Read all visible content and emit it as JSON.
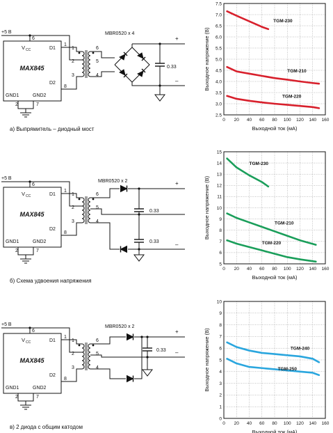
{
  "colors": {
    "red": "#d8202c",
    "green": "#1a9e5a",
    "blue": "#2aa6de",
    "grid": "#888888",
    "ink": "#111111"
  },
  "circuits": [
    {
      "caption": "а) Выпрямитель – диодный мост",
      "ic_name": "MAX845",
      "vcc": "V",
      "vcc_sub": "CC",
      "d1": "D1",
      "d2": "D2",
      "gnd1": "GND1",
      "gnd2": "GND2",
      "supply": "+5 В",
      "pins": [
        "6",
        "1",
        "8",
        "2",
        "7"
      ],
      "tr_pins": [
        "1",
        "2",
        "3",
        "6",
        "5",
        "4"
      ],
      "diode_label": "MBR0520 x 4",
      "cap_labels": [
        "0.33"
      ],
      "plus": "+",
      "minus": "–"
    },
    {
      "caption": "б) Схема удвоения напряжения",
      "ic_name": "MAX845",
      "vcc": "V",
      "vcc_sub": "CC",
      "d1": "D1",
      "d2": "D2",
      "gnd1": "GND1",
      "gnd2": "GND2",
      "supply": "+5 В",
      "pins": [
        "6",
        "1",
        "8",
        "2",
        "7"
      ],
      "tr_pins": [
        "1",
        "2",
        "3",
        "6",
        "5",
        "4"
      ],
      "diode_label": "MBR0520 x 2",
      "cap_labels": [
        "0.33",
        "0.33"
      ],
      "plus": "+",
      "minus": "–"
    },
    {
      "caption": "в) 2 диода с общим катодом",
      "ic_name": "MAX845",
      "vcc": "V",
      "vcc_sub": "CC",
      "d1": "D1",
      "d2": "D2",
      "gnd1": "GND1",
      "gnd2": "GND2",
      "supply": "+5 В",
      "pins": [
        "6",
        "1",
        "8",
        "2",
        "7"
      ],
      "tr_pins": [
        "1",
        "2",
        "3",
        "6",
        "5",
        "4"
      ],
      "diode_label": "MBR0520 x 2",
      "cap_labels": [
        "0.33"
      ],
      "plus": "+",
      "minus": "–"
    }
  ],
  "chart_data": [
    {
      "type": "line",
      "xlabel": "Выходной ток (мА)",
      "ylabel": "Выходное напряжение (В)",
      "xlim": [
        0,
        160
      ],
      "ylim": [
        2.5,
        7.5
      ],
      "xticks": [
        "0",
        "20",
        "40",
        "60",
        "80",
        "100",
        "120",
        "140",
        "160"
      ],
      "yticks": [
        "2.5",
        "3.0",
        "3.5",
        "4.0",
        "4.5",
        "5.0",
        "5.5",
        "6.0",
        "6.5",
        "7.0",
        "7.5"
      ],
      "grid": true,
      "series": [
        {
          "name": "TGM-230",
          "color": "red",
          "x": [
            5,
            20,
            40,
            60,
            70
          ],
          "y": [
            7.15,
            6.95,
            6.7,
            6.45,
            6.35
          ]
        },
        {
          "name": "TGM-210",
          "color": "red",
          "x": [
            5,
            20,
            40,
            60,
            80,
            100,
            120,
            140,
            150
          ],
          "y": [
            4.65,
            4.45,
            4.35,
            4.25,
            4.15,
            4.08,
            4.0,
            3.93,
            3.9
          ]
        },
        {
          "name": "TGM-220",
          "color": "red",
          "x": [
            5,
            20,
            40,
            60,
            80,
            100,
            120,
            140,
            150
          ],
          "y": [
            3.35,
            3.22,
            3.13,
            3.06,
            3.0,
            2.95,
            2.9,
            2.85,
            2.8
          ]
        }
      ]
    },
    {
      "type": "line",
      "xlabel": "Выходной ток (мА)",
      "ylabel": "Выходное напряжение (В)",
      "xlim": [
        0,
        160
      ],
      "ylim": [
        5,
        15
      ],
      "xticks": [
        "0",
        "20",
        "40",
        "60",
        "80",
        "100",
        "120",
        "140",
        "160"
      ],
      "yticks": [
        "5",
        "6",
        "7",
        "8",
        "9",
        "10",
        "11",
        "12",
        "13",
        "14",
        "15"
      ],
      "grid": true,
      "series": [
        {
          "name": "TGM-230",
          "color": "green",
          "x": [
            5,
            20,
            40,
            60,
            70
          ],
          "y": [
            14.4,
            13.6,
            12.9,
            12.3,
            11.9
          ]
        },
        {
          "name": "TGM-210",
          "color": "green",
          "x": [
            5,
            20,
            40,
            60,
            80,
            100,
            120,
            145
          ],
          "y": [
            9.5,
            9.1,
            8.7,
            8.3,
            7.9,
            7.5,
            7.1,
            6.7
          ]
        },
        {
          "name": "TGM-220",
          "color": "green",
          "x": [
            5,
            20,
            40,
            60,
            80,
            100,
            120,
            145
          ],
          "y": [
            7.1,
            6.8,
            6.5,
            6.2,
            5.9,
            5.6,
            5.4,
            5.2
          ]
        }
      ]
    },
    {
      "type": "line",
      "xlabel": "Выходной ток (мА)",
      "ylabel": "Выходное напряжение (В)",
      "xlim": [
        0,
        160
      ],
      "ylim": [
        0,
        10
      ],
      "xticks": [
        "0",
        "20",
        "40",
        "60",
        "80",
        "100",
        "120",
        "140",
        "160"
      ],
      "yticks": [
        "0",
        "1",
        "2",
        "3",
        "4",
        "5",
        "6",
        "7",
        "8",
        "9",
        "10"
      ],
      "grid": true,
      "series": [
        {
          "name": "TGM-240",
          "color": "blue",
          "x": [
            5,
            20,
            40,
            60,
            80,
            100,
            120,
            140,
            150
          ],
          "y": [
            6.5,
            6.1,
            5.8,
            5.6,
            5.5,
            5.4,
            5.3,
            5.1,
            4.8
          ]
        },
        {
          "name": "TGM-250",
          "color": "blue",
          "x": [
            5,
            20,
            40,
            60,
            80,
            100,
            120,
            140,
            150
          ],
          "y": [
            5.1,
            4.7,
            4.4,
            4.3,
            4.2,
            4.1,
            4.0,
            3.9,
            3.7
          ]
        }
      ]
    }
  ]
}
